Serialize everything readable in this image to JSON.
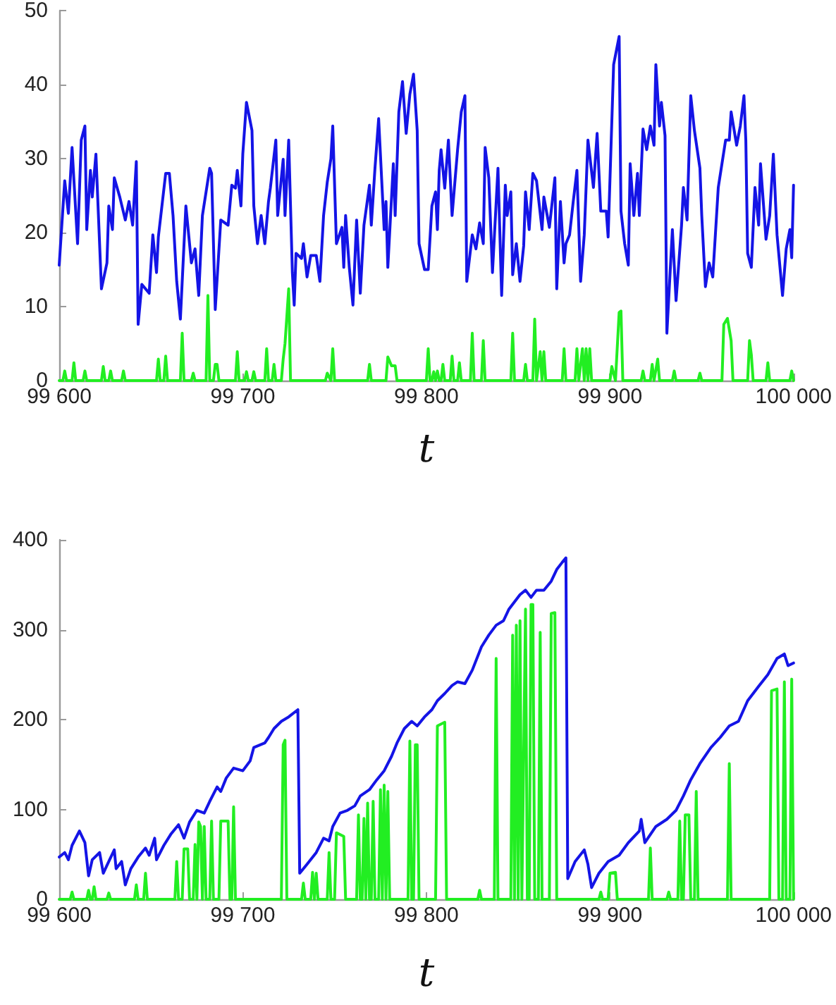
{
  "chart_data": [
    {
      "type": "line",
      "xlabel": "t",
      "xlim": [
        99600,
        100000
      ],
      "xticks": [
        {
          "value": 99600,
          "label": "99 600"
        },
        {
          "value": 99700,
          "label": "99 700"
        },
        {
          "value": 99800,
          "label": "99 800"
        },
        {
          "value": 99900,
          "label": "99 900"
        },
        {
          "value": 100000,
          "label": "100 000"
        }
      ],
      "ylim": [
        0,
        50
      ],
      "yticks": [
        0,
        10,
        20,
        30,
        40,
        50
      ],
      "marker": "none",
      "line_style": "solid",
      "series": [
        {
          "color": "#1414e6",
          "x": [
            99600,
            99603,
            99605,
            99607,
            99610,
            99612,
            99614,
            99615,
            99617,
            99618,
            99620,
            99623,
            99626,
            99627,
            99629,
            99630,
            99633,
            99636,
            99638,
            99640,
            99642,
            99643,
            99645,
            99649,
            99651,
            99653,
            99654,
            99658,
            99660,
            99662,
            99664,
            99666,
            99669,
            99672,
            99674,
            99676,
            99678,
            99682,
            99683,
            99685,
            99688,
            99692,
            99694,
            99696,
            99697,
            99699,
            99700,
            99702,
            99705,
            99706,
            99708,
            99710,
            99712,
            99714,
            99715,
            99718,
            99719,
            99722,
            99723,
            99725,
            99727,
            99728,
            99729,
            99732,
            99733,
            99735,
            99737,
            99740,
            99742,
            99744,
            99746,
            99748,
            99749,
            99751,
            99754,
            99755,
            99756,
            99758,
            99760,
            99762,
            99764,
            99766,
            99769,
            99770,
            99772,
            99774,
            99777,
            99778,
            99779,
            99782,
            99783,
            99785,
            99787,
            99789,
            99791,
            99793,
            99795,
            99796,
            99799,
            99801,
            99803,
            99805,
            99806,
            99807,
            99808,
            99810,
            99812,
            99814,
            99817,
            99819,
            99821,
            99822,
            99825,
            99827,
            99829,
            99831,
            99832,
            99834,
            99836,
            99839,
            99841,
            99843,
            99844,
            99846,
            99847,
            99849,
            99851,
            99853,
            99854,
            99856,
            99858,
            99860,
            99863,
            99864,
            99867,
            99870,
            99871,
            99873,
            99875,
            99876,
            99878,
            99880,
            99882,
            99884,
            99886,
            99888,
            99891,
            99893,
            99895,
            99898,
            99899,
            99902,
            99905,
            99906,
            99908,
            99910,
            99911,
            99913,
            99915,
            99916,
            99918,
            99920,
            99922,
            99924,
            99925,
            99927,
            99928,
            99930,
            99931,
            99934,
            99936,
            99939,
            99940,
            99942,
            99944,
            99946,
            99949,
            99950,
            99952,
            99954,
            99956,
            99959,
            99961,
            99963,
            99965,
            99966,
            99969,
            99971,
            99973,
            99974,
            99975,
            99977,
            99979,
            99981,
            99982,
            99985,
            99987,
            99989,
            99991,
            99994,
            99996,
            99998,
            99999,
            100000
          ],
          "values": [
            15.6,
            27,
            22.6,
            31.5,
            18.5,
            32.5,
            34.4,
            20.4,
            28.4,
            24.8,
            30.6,
            12.4,
            15.9,
            23.6,
            20.4,
            27.4,
            24.8,
            21.7,
            24.2,
            21,
            29.6,
            7.6,
            13,
            11.8,
            19.7,
            14.6,
            19.4,
            28,
            28,
            22.3,
            13.4,
            8.3,
            23.6,
            15.9,
            17.8,
            11.5,
            22.3,
            28.7,
            28,
            9.6,
            21.7,
            21,
            26.4,
            26,
            28.4,
            23.6,
            30.6,
            37.6,
            33.8,
            23.6,
            18.5,
            22.3,
            18.5,
            24.2,
            26,
            32.5,
            22.3,
            29.9,
            22.3,
            32.5,
            14.6,
            10.2,
            17.2,
            16.5,
            18.5,
            14,
            16.9,
            16.9,
            13.4,
            22.3,
            26.8,
            30,
            34.4,
            18.5,
            20.7,
            15.3,
            22.3,
            15.3,
            10.2,
            21.7,
            11.8,
            21,
            26.4,
            21,
            28.7,
            35.4,
            20.4,
            24.2,
            15.3,
            29.3,
            22.3,
            36.3,
            40.4,
            33.4,
            38.7,
            41.4,
            33.8,
            18.5,
            15,
            15,
            23.6,
            25.5,
            20.4,
            28.4,
            31.2,
            26,
            32.5,
            22.3,
            31.2,
            36.3,
            38.5,
            13.4,
            19.7,
            17.8,
            21.3,
            18.5,
            31.5,
            27.4,
            14.6,
            28.7,
            11.5,
            26.4,
            22.3,
            25.5,
            14.3,
            18.5,
            13.4,
            18.2,
            25.5,
            20.4,
            28,
            27,
            20.4,
            24.8,
            20.7,
            27.4,
            12.4,
            24.2,
            15.9,
            18.5,
            19.7,
            24.2,
            28.4,
            13.4,
            19.7,
            32.5,
            26.1,
            33.4,
            22.9,
            22.9,
            19.4,
            42.7,
            46.5,
            22.9,
            18.5,
            15.6,
            29.3,
            22.3,
            28,
            22.3,
            34,
            31.2,
            34.4,
            31.8,
            42.7,
            34.4,
            37.6,
            33.1,
            6.4,
            20.4,
            10.8,
            21,
            26.1,
            21.7,
            38.5,
            33.8,
            28.7,
            22.3,
            12.7,
            15.9,
            14,
            26.1,
            29.3,
            32.5,
            32.5,
            36.3,
            31.8,
            34.4,
            38.5,
            32.5,
            17.2,
            15.3,
            26.1,
            21,
            29.3,
            19.1,
            22.3,
            30.6,
            19.7,
            11.5,
            17.8,
            20.4,
            16.6,
            26.4
          ]
        },
        {
          "color": "#22ee22",
          "x": [
            99600,
            99602,
            99603,
            99604,
            99607,
            99608,
            99609,
            99613,
            99614,
            99615,
            99623,
            99624,
            99625,
            99627,
            99628,
            99629,
            99634,
            99635,
            99636,
            99653,
            99654,
            99655,
            99657,
            99658,
            99659,
            99666,
            99667,
            99668,
            99672,
            99673,
            99674,
            99680,
            99681,
            99682,
            99684,
            99685,
            99686,
            99687,
            99696,
            99697,
            99698,
            99701,
            99702,
            99703,
            99705,
            99706,
            99707,
            99712,
            99713,
            99714,
            99716,
            99717,
            99718,
            99721,
            99722,
            99723,
            99725,
            99726,
            99745,
            99746,
            99748,
            99749,
            99750,
            99768,
            99769,
            99770,
            99778,
            99779,
            99781,
            99783,
            99784,
            99800,
            99801,
            99802,
            99803,
            99804,
            99805,
            99806,
            99807,
            99808,
            99809,
            99810,
            99813,
            99814,
            99815,
            99817,
            99818,
            99819,
            99824,
            99825,
            99826,
            99830,
            99831,
            99832,
            99846,
            99847,
            99848,
            99853,
            99854,
            99855,
            99858,
            99859,
            99860,
            99862,
            99863,
            99864,
            99865,
            99874,
            99875,
            99876,
            99881,
            99882,
            99883,
            99885,
            99886,
            99887,
            99888,
            99889,
            99890,
            99900,
            99901,
            99903,
            99905,
            99906,
            99907,
            99917,
            99918,
            99919,
            99922,
            99923,
            99924,
            99926,
            99927,
            99934,
            99935,
            99936,
            99948,
            99949,
            99950,
            99961,
            99962,
            99964,
            99966,
            99967,
            99975,
            99976,
            99977,
            99978,
            99985,
            99986,
            99987,
            99998,
            99999,
            100000
          ],
          "values": [
            0,
            0,
            1.3,
            0,
            0,
            2.4,
            0,
            0,
            1.3,
            0,
            0,
            1.9,
            0,
            0,
            1.3,
            0,
            0,
            1.3,
            0,
            0,
            2.9,
            0,
            0,
            3.3,
            0,
            0,
            6.4,
            0,
            0,
            1,
            0,
            0,
            11.5,
            0,
            0,
            2.2,
            2.2,
            0,
            0,
            3.9,
            0,
            0,
            1.2,
            0,
            0,
            1.2,
            0,
            0,
            4.3,
            0,
            0,
            2.2,
            0,
            0,
            2.9,
            5,
            12.4,
            0,
            0,
            1,
            0,
            4.3,
            0,
            0,
            2.2,
            0,
            0,
            3.2,
            2,
            2,
            0,
            0,
            4.3,
            0,
            0,
            1.2,
            0,
            1.3,
            0,
            0,
            2.2,
            0,
            0,
            3.3,
            0,
            0,
            2.4,
            0,
            0,
            6.4,
            0,
            0,
            5.4,
            0,
            0,
            6.4,
            0,
            0,
            2.2,
            0,
            0,
            8.3,
            0,
            3.9,
            0,
            3.9,
            0,
            0,
            4.3,
            0,
            0,
            4.3,
            0,
            4.3,
            0,
            4.3,
            0,
            4.3,
            0,
            0,
            1.9,
            0,
            9.2,
            9.4,
            0,
            0,
            1.3,
            0,
            0,
            2.2,
            0,
            2.9,
            0,
            0,
            1.3,
            0,
            0,
            1,
            0,
            0,
            7.6,
            8.4,
            5.4,
            0,
            0,
            5.4,
            3.5,
            0,
            0,
            2.4,
            0,
            0,
            1.3,
            0
          ]
        }
      ]
    },
    {
      "type": "line",
      "xlabel": "t",
      "xlim": [
        99600,
        100000
      ],
      "xticks": [
        {
          "value": 99600,
          "label": "99 600"
        },
        {
          "value": 99700,
          "label": "99 700"
        },
        {
          "value": 99800,
          "label": "99 800"
        },
        {
          "value": 99900,
          "label": "99 900"
        },
        {
          "value": 100000,
          "label": "100 000"
        }
      ],
      "ylim": [
        0,
        400
      ],
      "yticks": [
        0,
        100,
        200,
        300,
        400
      ],
      "marker": "none",
      "line_style": "solid",
      "series": [
        {
          "color": "#1414e6",
          "x": [
            99600,
            99603,
            99605,
            99607,
            99611,
            99614,
            99616,
            99618,
            99622,
            99624,
            99627,
            99630,
            99631,
            99634,
            99636,
            99639,
            99643,
            99647,
            99649,
            99652,
            99653,
            99657,
            99661,
            99665,
            99668,
            99671,
            99675,
            99679,
            99682,
            99686,
            99688,
            99691,
            99695,
            99700,
            99704,
            99706,
            99712,
            99714,
            99717,
            99721,
            99725,
            99730,
            99731,
            99735,
            99740,
            99744,
            99747,
            99749,
            99753,
            99757,
            99761,
            99764,
            99769,
            99773,
            99777,
            99781,
            99784,
            99788,
            99792,
            99795,
            99799,
            99803,
            99806,
            99810,
            99814,
            99817,
            99821,
            99825,
            99830,
            99834,
            99838,
            99842,
            99845,
            99851,
            99854,
            99857,
            99860,
            99864,
            99868,
            99871,
            99874,
            99876,
            99877,
            99881,
            99886,
            99888,
            99890,
            99894,
            99899,
            99905,
            99910,
            99916,
            99917,
            99919,
            99925,
            99931,
            99936,
            99940,
            99944,
            99949,
            99955,
            99960,
            99965,
            99970,
            99975,
            99981,
            99986,
            99991,
            99995,
            99997,
            100000
          ],
          "values": [
            47,
            52,
            44,
            60,
            76,
            63,
            26,
            44,
            52,
            29,
            42,
            55,
            34,
            42,
            16,
            34,
            47,
            57,
            49,
            68,
            44,
            60,
            73,
            83,
            68,
            86,
            99,
            96,
            109,
            125,
            120,
            135,
            146,
            143,
            154,
            169,
            174,
            180,
            190,
            198,
            203,
            211,
            29,
            39,
            52,
            68,
            65,
            81,
            96,
            99,
            104,
            115,
            122,
            133,
            143,
            159,
            174,
            190,
            198,
            193,
            203,
            211,
            221,
            229,
            238,
            242,
            240,
            255,
            281,
            294,
            305,
            310,
            323,
            339,
            344,
            336,
            344,
            344,
            354,
            367,
            375,
            380,
            23,
            42,
            55,
            39,
            13,
            29,
            42,
            49,
            63,
            76,
            89,
            63,
            81,
            89,
            99,
            115,
            133,
            151,
            169,
            180,
            193,
            198,
            221,
            237,
            250,
            268,
            273,
            260,
            263
          ]
        },
        {
          "color": "#22ee22",
          "x": [
            99600,
            99606,
            99607,
            99608,
            99615,
            99616,
            99617,
            99618,
            99619,
            99620,
            99626,
            99627,
            99628,
            99641,
            99642,
            99643,
            99646,
            99647,
            99648,
            99663,
            99664,
            99665,
            99667,
            99668,
            99670,
            99671,
            99673,
            99674,
            99675,
            99676,
            99677,
            99678,
            99679,
            99680,
            99682,
            99683,
            99684,
            99687,
            99688,
            99692,
            99693,
            99694,
            99695,
            99696,
            99721,
            99722,
            99723,
            99724,
            99732,
            99733,
            99734,
            99737,
            99738,
            99739,
            99740,
            99741,
            99746,
            99747,
            99748,
            99750,
            99751,
            99755,
            99756,
            99762,
            99763,
            99764,
            99765,
            99766,
            99767,
            99768,
            99769,
            99770,
            99771,
            99772,
            99774,
            99775,
            99776,
            99777,
            99778,
            99779,
            99780,
            99790,
            99791,
            99792,
            99793,
            99794,
            99795,
            99796,
            99805,
            99806,
            99810,
            99811,
            99828,
            99829,
            99830,
            99837,
            99838,
            99839,
            99846,
            99847,
            99848,
            99849,
            99850,
            99851,
            99852,
            99854,
            99855,
            99856,
            99857,
            99858,
            99859,
            99861,
            99862,
            99863,
            99867,
            99868,
            99870,
            99871,
            99894,
            99895,
            99896,
            99899,
            99900,
            99903,
            99904,
            99921,
            99922,
            99923,
            99931,
            99932,
            99933,
            99937,
            99938,
            99939,
            99940,
            99941,
            99943,
            99944,
            99946,
            99947,
            99948,
            99964,
            99965,
            99966,
            99987,
            99988,
            99991,
            99992,
            99994,
            99995,
            99996,
            99998,
            99999,
            100000
          ],
          "values": [
            0,
            0,
            8,
            0,
            0,
            10,
            0,
            0,
            14,
            0,
            0,
            7,
            0,
            0,
            16,
            0,
            0,
            29,
            0,
            0,
            42,
            0,
            0,
            56,
            56,
            0,
            0,
            61,
            0,
            86,
            81,
            0,
            81,
            0,
            0,
            87,
            0,
            0,
            87,
            87,
            0,
            0,
            103,
            0,
            0,
            172,
            177,
            0,
            0,
            18,
            0,
            0,
            30,
            0,
            29,
            0,
            0,
            52,
            0,
            0,
            74,
            70,
            0,
            0,
            94,
            0,
            0,
            90,
            0,
            107,
            0,
            0,
            109,
            0,
            0,
            122,
            0,
            127,
            0,
            120,
            0,
            0,
            176,
            0,
            0,
            172,
            172,
            0,
            0,
            193,
            197,
            0,
            0,
            10,
            0,
            0,
            268,
            0,
            0,
            294,
            0,
            305,
            0,
            310,
            0,
            323,
            0,
            0,
            328,
            328,
            0,
            0,
            297,
            0,
            0,
            318,
            319,
            0,
            0,
            8,
            0,
            0,
            29,
            30,
            0,
            0,
            57,
            0,
            0,
            8,
            0,
            0,
            87,
            0,
            0,
            94,
            94,
            0,
            0,
            120,
            0,
            0,
            151,
            0,
            0,
            232,
            234,
            0,
            0,
            242,
            0,
            0,
            245,
            0
          ]
        }
      ]
    }
  ]
}
